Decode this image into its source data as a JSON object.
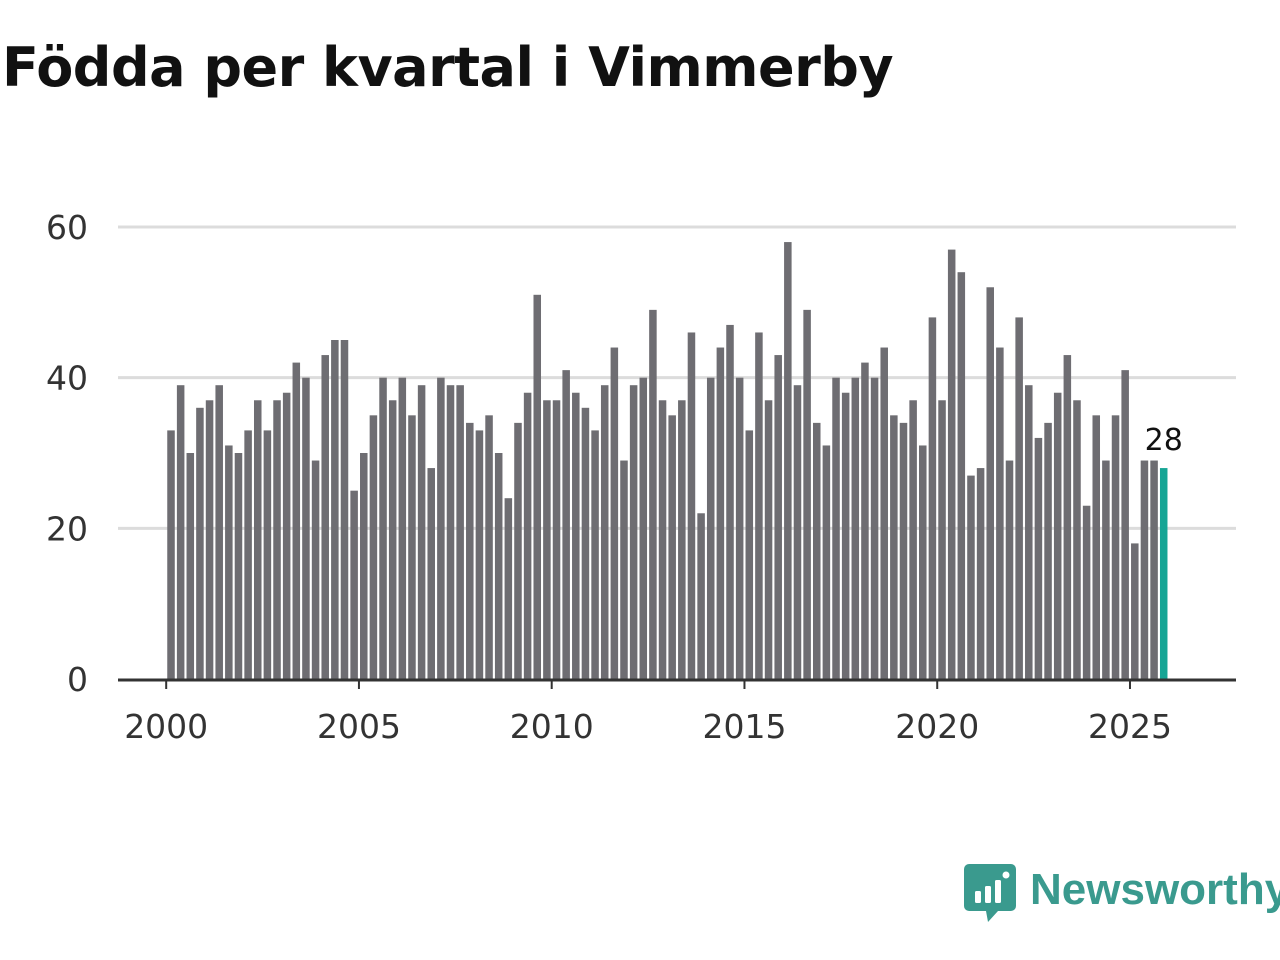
{
  "title": "Födda per kvartal i Vimmerby",
  "brand": {
    "name": "Newsworthy",
    "color": "#3a9a8e",
    "icon": "newsworthy-logo-icon"
  },
  "colors": {
    "bar": "#6e6d72",
    "highlight": "#16a595",
    "grid": "#dcdcdc",
    "axis": "#333333"
  },
  "chart_data": {
    "type": "bar",
    "title": "Födda per kvartal i Vimmerby",
    "xlabel": "",
    "ylabel": "",
    "ylim": [
      0,
      60
    ],
    "yticks": [
      0,
      20,
      40,
      60
    ],
    "xticks": [
      2000,
      2005,
      2010,
      2015,
      2020,
      2025
    ],
    "xlim": [
      1998.75,
      2027.75
    ],
    "grid": true,
    "start_year": 2000,
    "periods_per_year": 4,
    "values": [
      33,
      39,
      30,
      36,
      37,
      39,
      31,
      30,
      33,
      37,
      33,
      37,
      38,
      42,
      40,
      29,
      43,
      45,
      45,
      25,
      30,
      35,
      40,
      37,
      40,
      35,
      39,
      28,
      40,
      39,
      39,
      34,
      33,
      35,
      30,
      24,
      34,
      38,
      51,
      37,
      37,
      41,
      38,
      36,
      33,
      39,
      44,
      29,
      39,
      40,
      49,
      37,
      35,
      37,
      46,
      22,
      40,
      44,
      47,
      40,
      33,
      46,
      37,
      43,
      58,
      39,
      49,
      34,
      31,
      40,
      38,
      40,
      42,
      40,
      44,
      35,
      34,
      37,
      31,
      48,
      37,
      57,
      54,
      27,
      28,
      52,
      44,
      29,
      48,
      39,
      32,
      34,
      38,
      43,
      37,
      23,
      35,
      29,
      35,
      41,
      18,
      29,
      29,
      28
    ],
    "highlight_last": true,
    "last_value_label": "28"
  }
}
